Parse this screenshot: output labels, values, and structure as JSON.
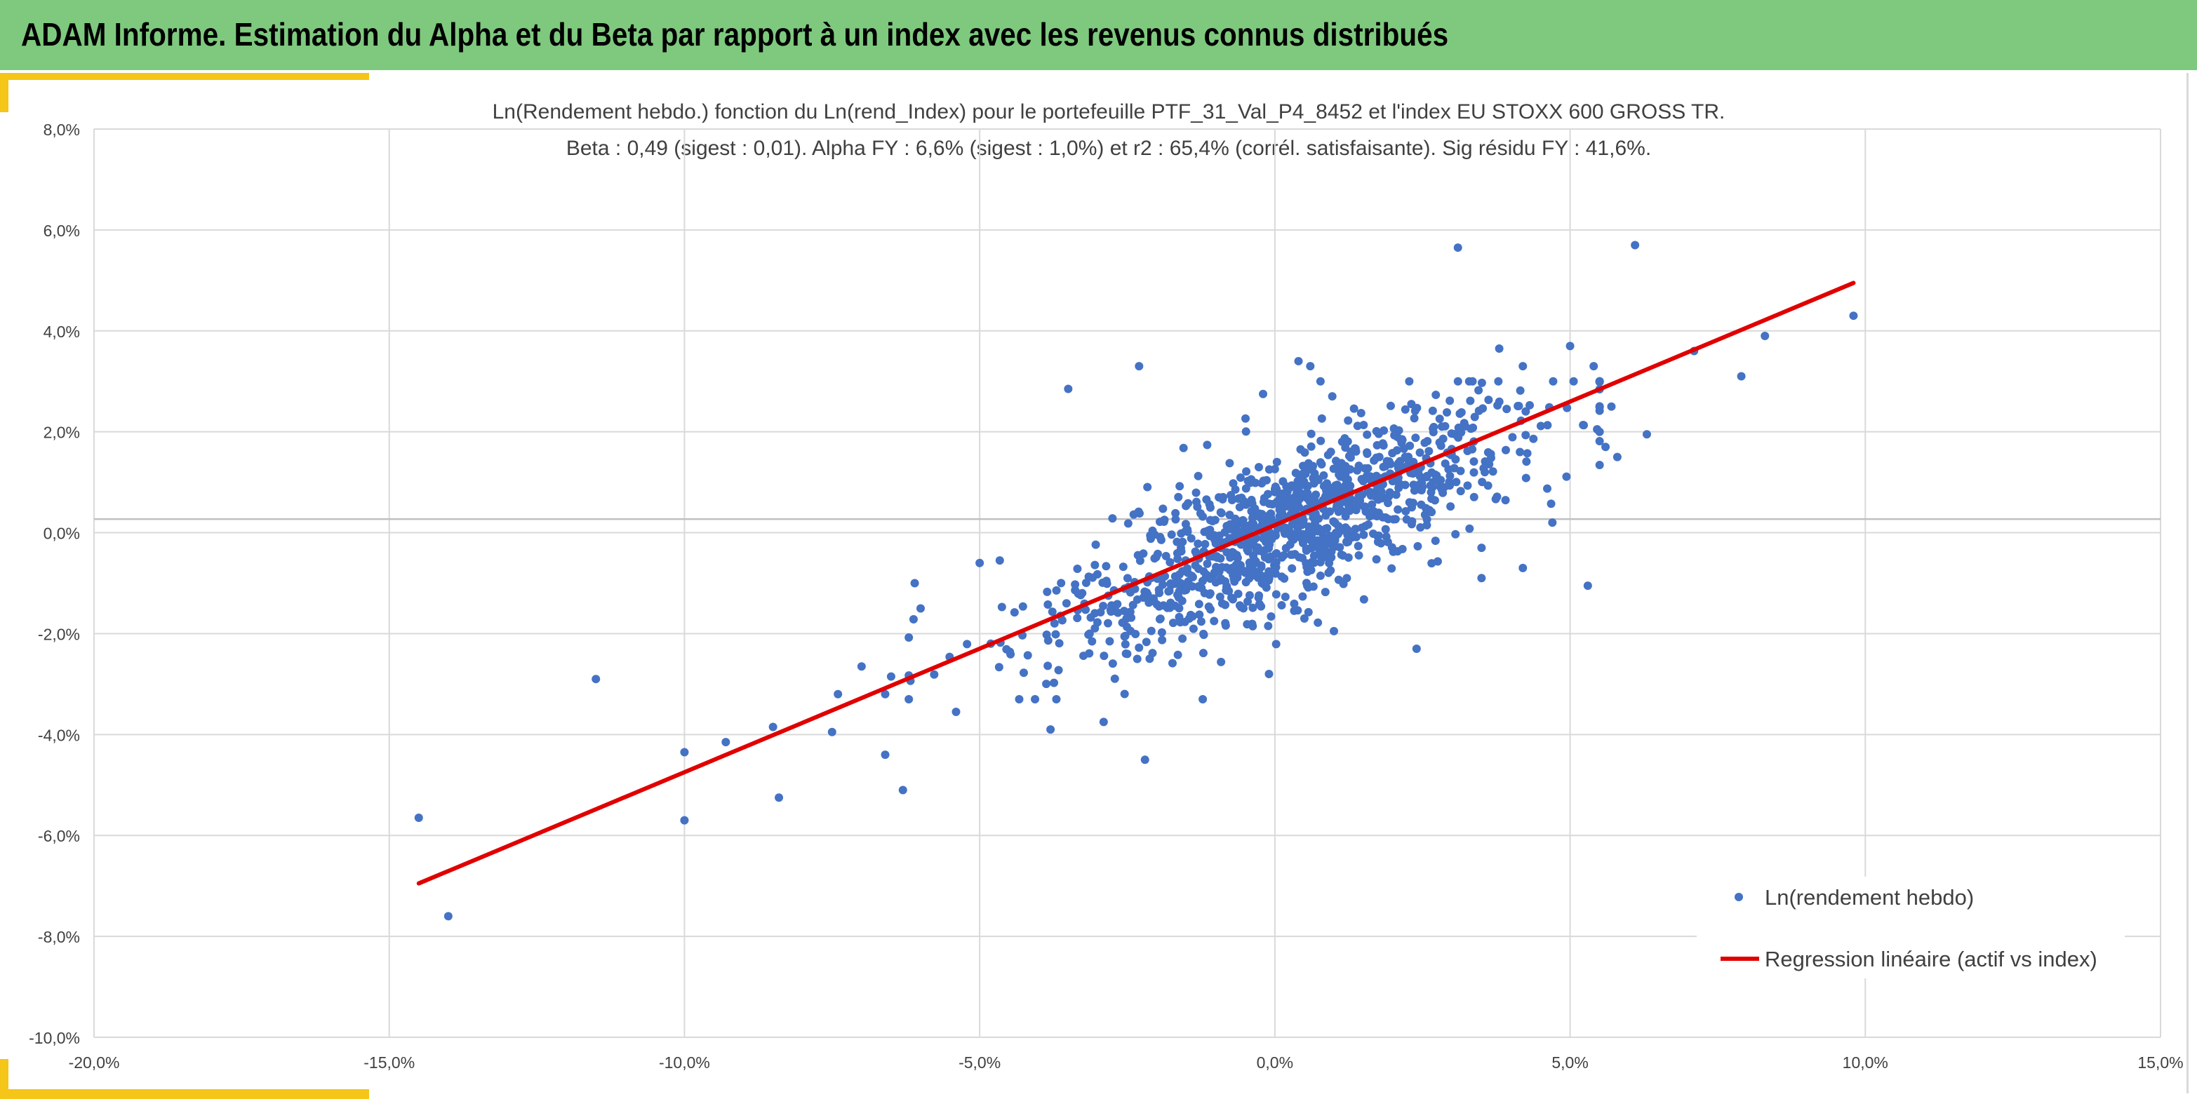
{
  "banner": {
    "title": "ADAM Informe. Estimation du Alpha et du Beta par rapport à un index avec les revenus connus distribués"
  },
  "colors": {
    "banner": "#7ec97e",
    "accent": "#f5c518",
    "points": "#4472c4",
    "regression": "#e00000",
    "grid": "#d9d9d9",
    "zero_axis": "#bfbfbf"
  },
  "chart_data": {
    "type": "scatter",
    "title": "Ln(Rendement hebdo.) fonction du Ln(rend_Index) pour le portefeuille PTF_31_Val_P4_8452 et l'index EU STOXX 600 GROSS TR.",
    "subtitle": "Beta : 0,49 (sigest : 0,01). Alpha FY : 6,6% (sigest : 1,0%) et r2 : 65,4% (corrél. satisfaisante). Sig résidu FY : 41,6%.",
    "xlabel": "",
    "ylabel": "",
    "xlim": [
      -20,
      15
    ],
    "ylim": [
      -10,
      8
    ],
    "x_ticks": [
      -20,
      -15,
      -10,
      -5,
      0,
      5,
      10,
      15
    ],
    "y_ticks": [
      -10,
      -8,
      -6,
      -4,
      -2,
      0,
      2,
      4,
      6,
      8
    ],
    "x_tick_labels": [
      "-20,0%",
      "-15,0%",
      "-10,0%",
      "-5,0%",
      "0,0%",
      "5,0%",
      "10,0%",
      "15,0%"
    ],
    "y_tick_labels": [
      "-10,0%",
      "-8,0%",
      "-6,0%",
      "-4,0%",
      "-2,0%",
      "0,0%",
      "2,0%",
      "4,0%",
      "6,0%",
      "8,0%"
    ],
    "x_axis_crosses_y_at": 0.27,
    "grid": true,
    "legend_position": "bottom-right",
    "series": [
      {
        "name": "Ln(rendement hebdo)",
        "kind": "scatter",
        "color": "#4472c4",
        "points_outliers": [
          [
            -14.5,
            -5.65
          ],
          [
            -14.0,
            -7.6
          ],
          [
            -11.5,
            -2.9
          ],
          [
            -10.0,
            -4.35
          ],
          [
            -10.0,
            -5.7
          ],
          [
            -9.3,
            -4.15
          ],
          [
            -8.5,
            -3.85
          ],
          [
            -8.4,
            -5.25
          ],
          [
            -7.5,
            -3.95
          ],
          [
            -7.4,
            -3.2
          ],
          [
            -7.0,
            -2.65
          ],
          [
            -6.6,
            -3.2
          ],
          [
            -6.5,
            -2.85
          ],
          [
            -6.6,
            -4.4
          ],
          [
            -6.3,
            -5.1
          ],
          [
            -6.1,
            -1.0
          ],
          [
            -6.0,
            -1.5
          ],
          [
            -5.4,
            -3.55
          ],
          [
            -5.0,
            -0.6
          ],
          [
            -3.5,
            2.85
          ],
          [
            -2.3,
            3.3
          ],
          [
            -2.2,
            -4.5
          ],
          [
            -2.9,
            -3.75
          ],
          [
            -3.8,
            -3.9
          ],
          [
            -0.2,
            2.75
          ],
          [
            0.4,
            3.4
          ],
          [
            0.6,
            3.3
          ],
          [
            0.5,
            -1.7
          ],
          [
            -0.1,
            -2.8
          ],
          [
            1.0,
            -1.95
          ],
          [
            2.4,
            -2.3
          ],
          [
            3.1,
            5.65
          ],
          [
            3.5,
            -0.3
          ],
          [
            3.5,
            -0.9
          ],
          [
            3.8,
            3.65
          ],
          [
            4.2,
            3.3
          ],
          [
            4.7,
            0.2
          ],
          [
            4.2,
            -0.7
          ],
          [
            5.0,
            3.7
          ],
          [
            5.3,
            -1.05
          ],
          [
            5.4,
            3.3
          ],
          [
            5.6,
            1.7
          ],
          [
            5.7,
            2.5
          ],
          [
            5.8,
            1.5
          ],
          [
            6.1,
            5.7
          ],
          [
            6.3,
            1.95
          ],
          [
            7.1,
            3.6
          ],
          [
            7.9,
            3.1
          ],
          [
            8.3,
            3.9
          ],
          [
            9.8,
            4.3
          ]
        ],
        "cloud": {
          "count": 1150,
          "x_mean": 0.2,
          "x_std": 1.9,
          "beta": 0.49,
          "intercept": 0.0,
          "resid_std": 0.75
        }
      },
      {
        "name": "Regression linéaire (actif vs index)",
        "kind": "line",
        "color": "#e00000",
        "points": [
          [
            -14.5,
            -6.95
          ],
          [
            9.8,
            4.95
          ]
        ]
      }
    ]
  }
}
